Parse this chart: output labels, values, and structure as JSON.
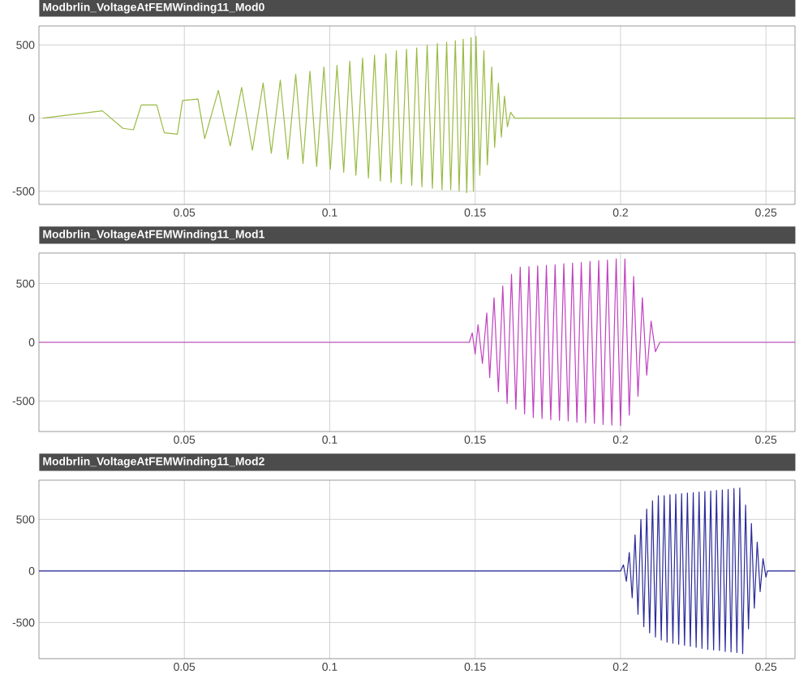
{
  "chart_data": [
    {
      "type": "line",
      "title": "Modbrlin_VoltageAtFEMWinding11_Mod0",
      "xlim": [
        0,
        0.26
      ],
      "ylim": [
        -590,
        630
      ],
      "xticks": [
        0.05,
        0.1,
        0.15,
        0.2,
        0.25
      ],
      "yticks": [
        -500,
        0,
        500
      ],
      "grid": true,
      "x": [
        0.0014,
        0.0218,
        0.0289,
        0.0325,
        0.0352,
        0.0405,
        0.0431,
        0.0476,
        0.0494,
        0.0547,
        0.057,
        0.0617,
        0.0658,
        0.0697,
        0.0734,
        0.0771,
        0.0799,
        0.083,
        0.0856,
        0.0883,
        0.0908,
        0.0932,
        0.0955,
        0.098,
        0.1002,
        0.1025,
        0.1048,
        0.1069,
        0.109,
        0.1113,
        0.1133,
        0.1154,
        0.1174,
        0.1193,
        0.1211,
        0.1229,
        0.1246,
        0.1264,
        0.1282,
        0.1299,
        0.1317,
        0.1335,
        0.1353,
        0.137,
        0.1386,
        0.1402,
        0.1416,
        0.1432,
        0.1445,
        0.1459,
        0.1471,
        0.1486,
        0.1494,
        0.1503,
        0.1516,
        0.153,
        0.1542,
        0.1557,
        0.1567,
        0.158,
        0.159,
        0.1601,
        0.1611,
        0.1622,
        0.1636,
        0.26
      ],
      "series": [
        {
          "color": "#99bb44",
          "values": [
            0,
            50,
            -70,
            -80,
            90,
            90,
            -100,
            -110,
            120,
            130,
            -140,
            190,
            -190,
            210,
            -220,
            240,
            -240,
            260,
            -280,
            300,
            -310,
            320,
            -330,
            350,
            -350,
            360,
            -370,
            390,
            -390,
            410,
            -410,
            430,
            -430,
            440,
            -440,
            460,
            -450,
            470,
            -460,
            480,
            -470,
            500,
            -480,
            510,
            -490,
            520,
            -490,
            530,
            -500,
            540,
            -510,
            550,
            -500,
            560,
            -390,
            460,
            -320,
            350,
            -200,
            240,
            -130,
            150,
            -60,
            40,
            0,
            0
          ]
        }
      ]
    },
    {
      "type": "line",
      "title": "Modbrlin_VoltageAtFEMWinding11_Mod1",
      "xlim": [
        0,
        0.26
      ],
      "ylim": [
        -760,
        760
      ],
      "xticks": [
        0.05,
        0.1,
        0.15,
        0.2,
        0.25
      ],
      "yticks": [
        -500,
        0,
        500
      ],
      "grid": true,
      "x": [
        0,
        0.148,
        0.149,
        0.15,
        0.151,
        0.1525,
        0.154,
        0.155,
        0.1565,
        0.158,
        0.1595,
        0.161,
        0.1625,
        0.164,
        0.1655,
        0.167,
        0.1685,
        0.17,
        0.1715,
        0.173,
        0.1745,
        0.176,
        0.1775,
        0.179,
        0.1805,
        0.182,
        0.1835,
        0.185,
        0.1865,
        0.188,
        0.1895,
        0.191,
        0.1925,
        0.194,
        0.1955,
        0.197,
        0.1985,
        0.2,
        0.2015,
        0.203,
        0.2045,
        0.206,
        0.2075,
        0.209,
        0.2105,
        0.212,
        0.2135,
        0.26
      ],
      "series": [
        {
          "color": "#c040c0",
          "values": [
            0,
            0,
            80,
            -100,
            150,
            -180,
            250,
            -300,
            380,
            -420,
            480,
            -520,
            580,
            -570,
            640,
            -610,
            645,
            -640,
            650,
            -650,
            655,
            -660,
            660,
            -665,
            670,
            -670,
            675,
            -680,
            680,
            -685,
            690,
            -690,
            695,
            -700,
            700,
            -705,
            710,
            -710,
            710,
            -620,
            560,
            -460,
            380,
            -280,
            180,
            -80,
            0,
            0
          ]
        }
      ]
    },
    {
      "type": "line",
      "title": "Modbrlin_VoltageAtFEMWinding11_Mod2",
      "xlim": [
        0,
        0.26
      ],
      "ylim": [
        -850,
        880
      ],
      "xticks": [
        0.05,
        0.1,
        0.15,
        0.2,
        0.25
      ],
      "yticks": [
        -500,
        0,
        500
      ],
      "grid": true,
      "x": [
        0,
        0.2,
        0.201,
        0.202,
        0.203,
        0.204,
        0.205,
        0.206,
        0.207,
        0.208,
        0.209,
        0.21,
        0.211,
        0.212,
        0.213,
        0.214,
        0.215,
        0.216,
        0.217,
        0.218,
        0.219,
        0.22,
        0.221,
        0.222,
        0.223,
        0.224,
        0.225,
        0.226,
        0.227,
        0.228,
        0.229,
        0.23,
        0.231,
        0.232,
        0.233,
        0.234,
        0.235,
        0.236,
        0.237,
        0.238,
        0.239,
        0.24,
        0.241,
        0.242,
        0.243,
        0.244,
        0.245,
        0.246,
        0.247,
        0.248,
        0.249,
        0.25,
        0.2505,
        0.26
      ],
      "series": [
        {
          "color": "#2a2a9a",
          "values": [
            0,
            0,
            60,
            -100,
            180,
            -260,
            350,
            -420,
            500,
            -540,
            600,
            -600,
            680,
            -640,
            730,
            -670,
            730,
            -690,
            740,
            -700,
            745,
            -710,
            750,
            -720,
            755,
            -730,
            760,
            -740,
            765,
            -750,
            770,
            -760,
            775,
            -765,
            780,
            -770,
            785,
            -780,
            790,
            -785,
            800,
            -790,
            805,
            -800,
            640,
            -560,
            460,
            -360,
            280,
            -200,
            120,
            -60,
            0,
            0
          ]
        }
      ]
    }
  ]
}
